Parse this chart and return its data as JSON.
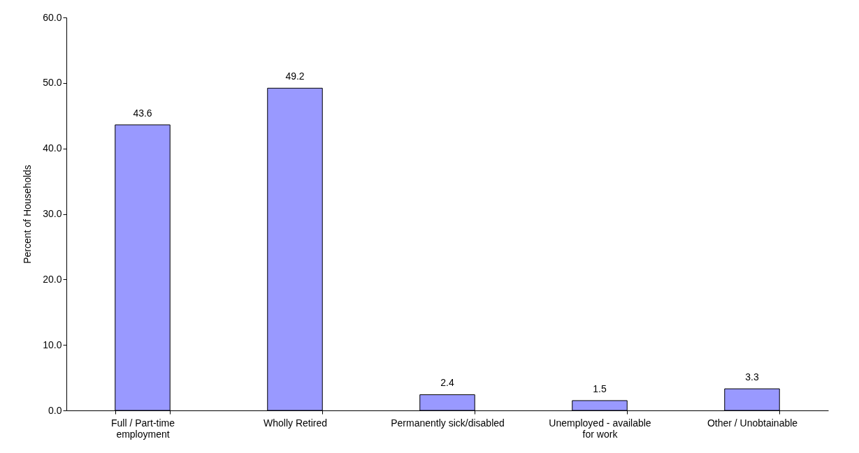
{
  "chart_data": {
    "type": "bar",
    "ylabel": "Percent of Households",
    "categories": [
      "Full / Part-time employment",
      "Wholly Retired",
      "Permanently sick/disabled",
      "Unemployed - available for work",
      "Other / Unobtainable"
    ],
    "values": [
      43.6,
      49.2,
      2.4,
      1.5,
      3.3
    ],
    "color": "#9999ff",
    "ylim": [
      0,
      60
    ],
    "yticks": [
      {
        "value": 0,
        "label": "0.0"
      },
      {
        "value": 10,
        "label": "10.0"
      },
      {
        "value": 20,
        "label": "20.0"
      },
      {
        "value": 30,
        "label": "30.0"
      },
      {
        "value": 40,
        "label": "40.0"
      },
      {
        "value": 50,
        "label": "50.0"
      },
      {
        "value": 60,
        "label": "60.0"
      }
    ],
    "data_labels": true,
    "grid": false
  }
}
